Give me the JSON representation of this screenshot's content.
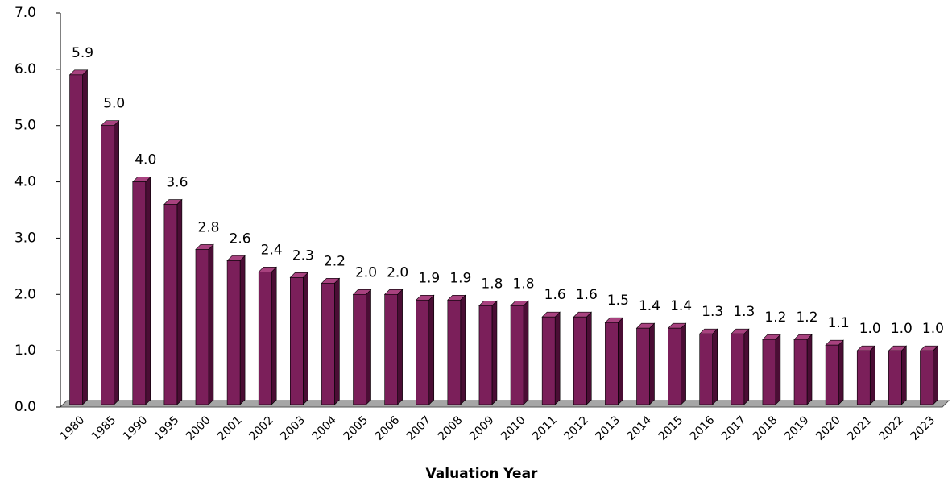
{
  "chart_data": {
    "type": "bar",
    "x_label": "Valuation Year",
    "categories": [
      "1980",
      "1985",
      "1990",
      "1995",
      "2000",
      "2001",
      "2002",
      "2003",
      "2004",
      "2005",
      "2006",
      "2007",
      "2008",
      "2009",
      "2010",
      "2011",
      "2012",
      "2013",
      "2014",
      "2015",
      "2016",
      "2017",
      "2018",
      "2019",
      "2020",
      "2021",
      "2022",
      "2023"
    ],
    "values": [
      5.9,
      5.0,
      4.0,
      3.6,
      2.8,
      2.6,
      2.4,
      2.3,
      2.2,
      2.0,
      2.0,
      1.9,
      1.9,
      1.8,
      1.8,
      1.6,
      1.6,
      1.5,
      1.4,
      1.4,
      1.3,
      1.3,
      1.2,
      1.2,
      1.1,
      1.0,
      1.0,
      1.0
    ],
    "value_labels": [
      "5.9",
      "5.0",
      "4.0",
      "3.6",
      "2.8",
      "2.6",
      "2.4",
      "2.3",
      "2.2",
      "2.0",
      "2.0",
      "1.9",
      "1.9",
      "1.8",
      "1.8",
      "1.6",
      "1.6",
      "1.5",
      "1.4",
      "1.4",
      "1.3",
      "1.3",
      "1.2",
      "1.2",
      "1.1",
      "1.0",
      "1.0",
      "1.0"
    ],
    "color": "#7b1f5a",
    "ylim": [
      0,
      7
    ],
    "yticks": [
      {
        "value": 0,
        "label": "0.0"
      },
      {
        "value": 1,
        "label": "1.0"
      },
      {
        "value": 2,
        "label": "2.0"
      },
      {
        "value": 3,
        "label": "3.0"
      },
      {
        "value": 4,
        "label": "4.0"
      },
      {
        "value": 5,
        "label": "5.0"
      },
      {
        "value": 6,
        "label": "6.0"
      },
      {
        "value": 7,
        "label": "7.0"
      }
    ],
    "grid": false
  }
}
